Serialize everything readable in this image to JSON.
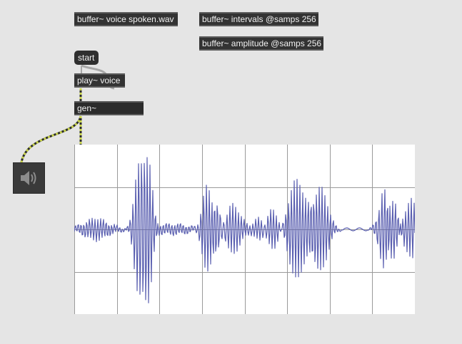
{
  "objects": {
    "buffer_voice": "buffer~ voice spoken.wav",
    "buffer_intervals": "buffer~ intervals @samps 256",
    "buffer_amplitude": "buffer~ amplitude @samps 256",
    "start": "start",
    "play": "play~ voice",
    "gen": "gen~"
  },
  "speaker": {
    "icon": "speaker-icon"
  },
  "colors": {
    "background": "#e5e5e5",
    "object": "#333333",
    "signal_wire": "#c8d34a",
    "waveform": "#5a5fb0",
    "grid": "#9a9a9a"
  }
}
